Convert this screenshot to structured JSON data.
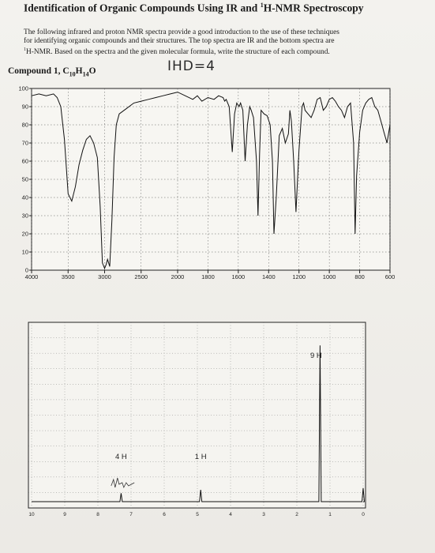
{
  "document": {
    "title_main": "Identification of Organic Compounds Using IR and ",
    "title_super": "1",
    "title_tail": "H-NMR Spectroscopy",
    "intro_line1": "The following infrared and proton NMR spectra provide a good introduction to the use of these techniques",
    "intro_line2": "for identifying organic compounds and their structures.  The top spectra are IR and the bottom spectra are",
    "intro_line3": "H-NMR.  Based on the spectra and the given molecular formula, write the structure of each compound.",
    "intro_line3_super": "1",
    "compound_label": "Compound 1,  C",
    "formula_c": "10",
    "formula_h_letter": "H",
    "formula_h": "14",
    "formula_o": "O",
    "handwritten_note": "IHD=4"
  },
  "chart_data": [
    {
      "type": "line",
      "title": "",
      "xlabel": "",
      "ylabel": "",
      "x_ticks": [
        "4000",
        "3500",
        "3000",
        "2500",
        "2000",
        "1800",
        "1600",
        "1400",
        "1200",
        "1000",
        "800",
        "600"
      ],
      "y_ticks": [
        "0",
        "10",
        "20",
        "30",
        "40",
        "50",
        "60",
        "70",
        "80",
        "90",
        "100"
      ],
      "ylim": [
        0,
        100
      ],
      "grid": true,
      "series": [
        {
          "x": [
            4000,
            3900,
            3800,
            3700,
            3650,
            3600,
            3550,
            3500,
            3450,
            3400,
            3350,
            3300,
            3250,
            3200,
            3150,
            3100,
            3060,
            3030,
            3000,
            2980,
            2960,
            2930,
            2900,
            2870,
            2840,
            2800,
            2700,
            2600,
            2500,
            2400,
            2300,
            2200,
            2100,
            2000,
            1950,
            1900,
            1870,
            1840,
            1800,
            1760,
            1730,
            1700,
            1690,
            1680,
            1660,
            1640,
            1625,
            1610,
            1595,
            1585,
            1570,
            1555,
            1540,
            1525,
            1515,
            1500,
            1480,
            1470,
            1460,
            1450,
            1430,
            1410,
            1390,
            1375,
            1365,
            1350,
            1330,
            1310,
            1290,
            1270,
            1260,
            1250,
            1235,
            1220,
            1200,
            1180,
            1170,
            1160,
            1140,
            1120,
            1100,
            1080,
            1060,
            1040,
            1020,
            1000,
            980,
            960,
            940,
            920,
            900,
            880,
            860,
            840,
            830,
            820,
            800,
            780,
            760,
            740,
            720,
            700,
            680,
            660,
            640,
            620,
            600
          ],
          "values": [
            96,
            97,
            96,
            97,
            95,
            90,
            72,
            42,
            38,
            46,
            58,
            66,
            72,
            74,
            70,
            62,
            35,
            4,
            1,
            3,
            6,
            2,
            28,
            62,
            80,
            86,
            89,
            92,
            93,
            94,
            95,
            96,
            97,
            98,
            96,
            94,
            96,
            93,
            95,
            94,
            96,
            95,
            93,
            94,
            90,
            65,
            86,
            92,
            90,
            92,
            88,
            60,
            80,
            90,
            88,
            84,
            60,
            30,
            64,
            88,
            86,
            85,
            80,
            60,
            20,
            40,
            74,
            78,
            70,
            75,
            88,
            82,
            60,
            32,
            66,
            90,
            92,
            88,
            86,
            84,
            88,
            94,
            95,
            88,
            90,
            94,
            95,
            93,
            90,
            88,
            84,
            90,
            92,
            70,
            20,
            52,
            76,
            88,
            92,
            94,
            95,
            90,
            88,
            82,
            76,
            70,
            80
          ]
        }
      ]
    },
    {
      "type": "line",
      "title": "",
      "xlabel": "",
      "ylabel": "",
      "x_ticks": [
        "10",
        "9",
        "8",
        "7",
        "6",
        "5",
        "4",
        "3",
        "2",
        "1",
        "0"
      ],
      "xlim": [
        10,
        0
      ],
      "grid": true,
      "peaks": [
        {
          "ppm": 7.3,
          "height": 0.05,
          "integration": "4 H"
        },
        {
          "ppm": 4.9,
          "height": 0.07,
          "integration": "1 H"
        },
        {
          "ppm": 1.3,
          "height": 0.92,
          "integration": "9 H"
        },
        {
          "ppm": 0.0,
          "height": 0.08,
          "integration": ""
        }
      ],
      "integration_labels": [
        "4 H",
        "1 H",
        "9 H"
      ]
    }
  ]
}
